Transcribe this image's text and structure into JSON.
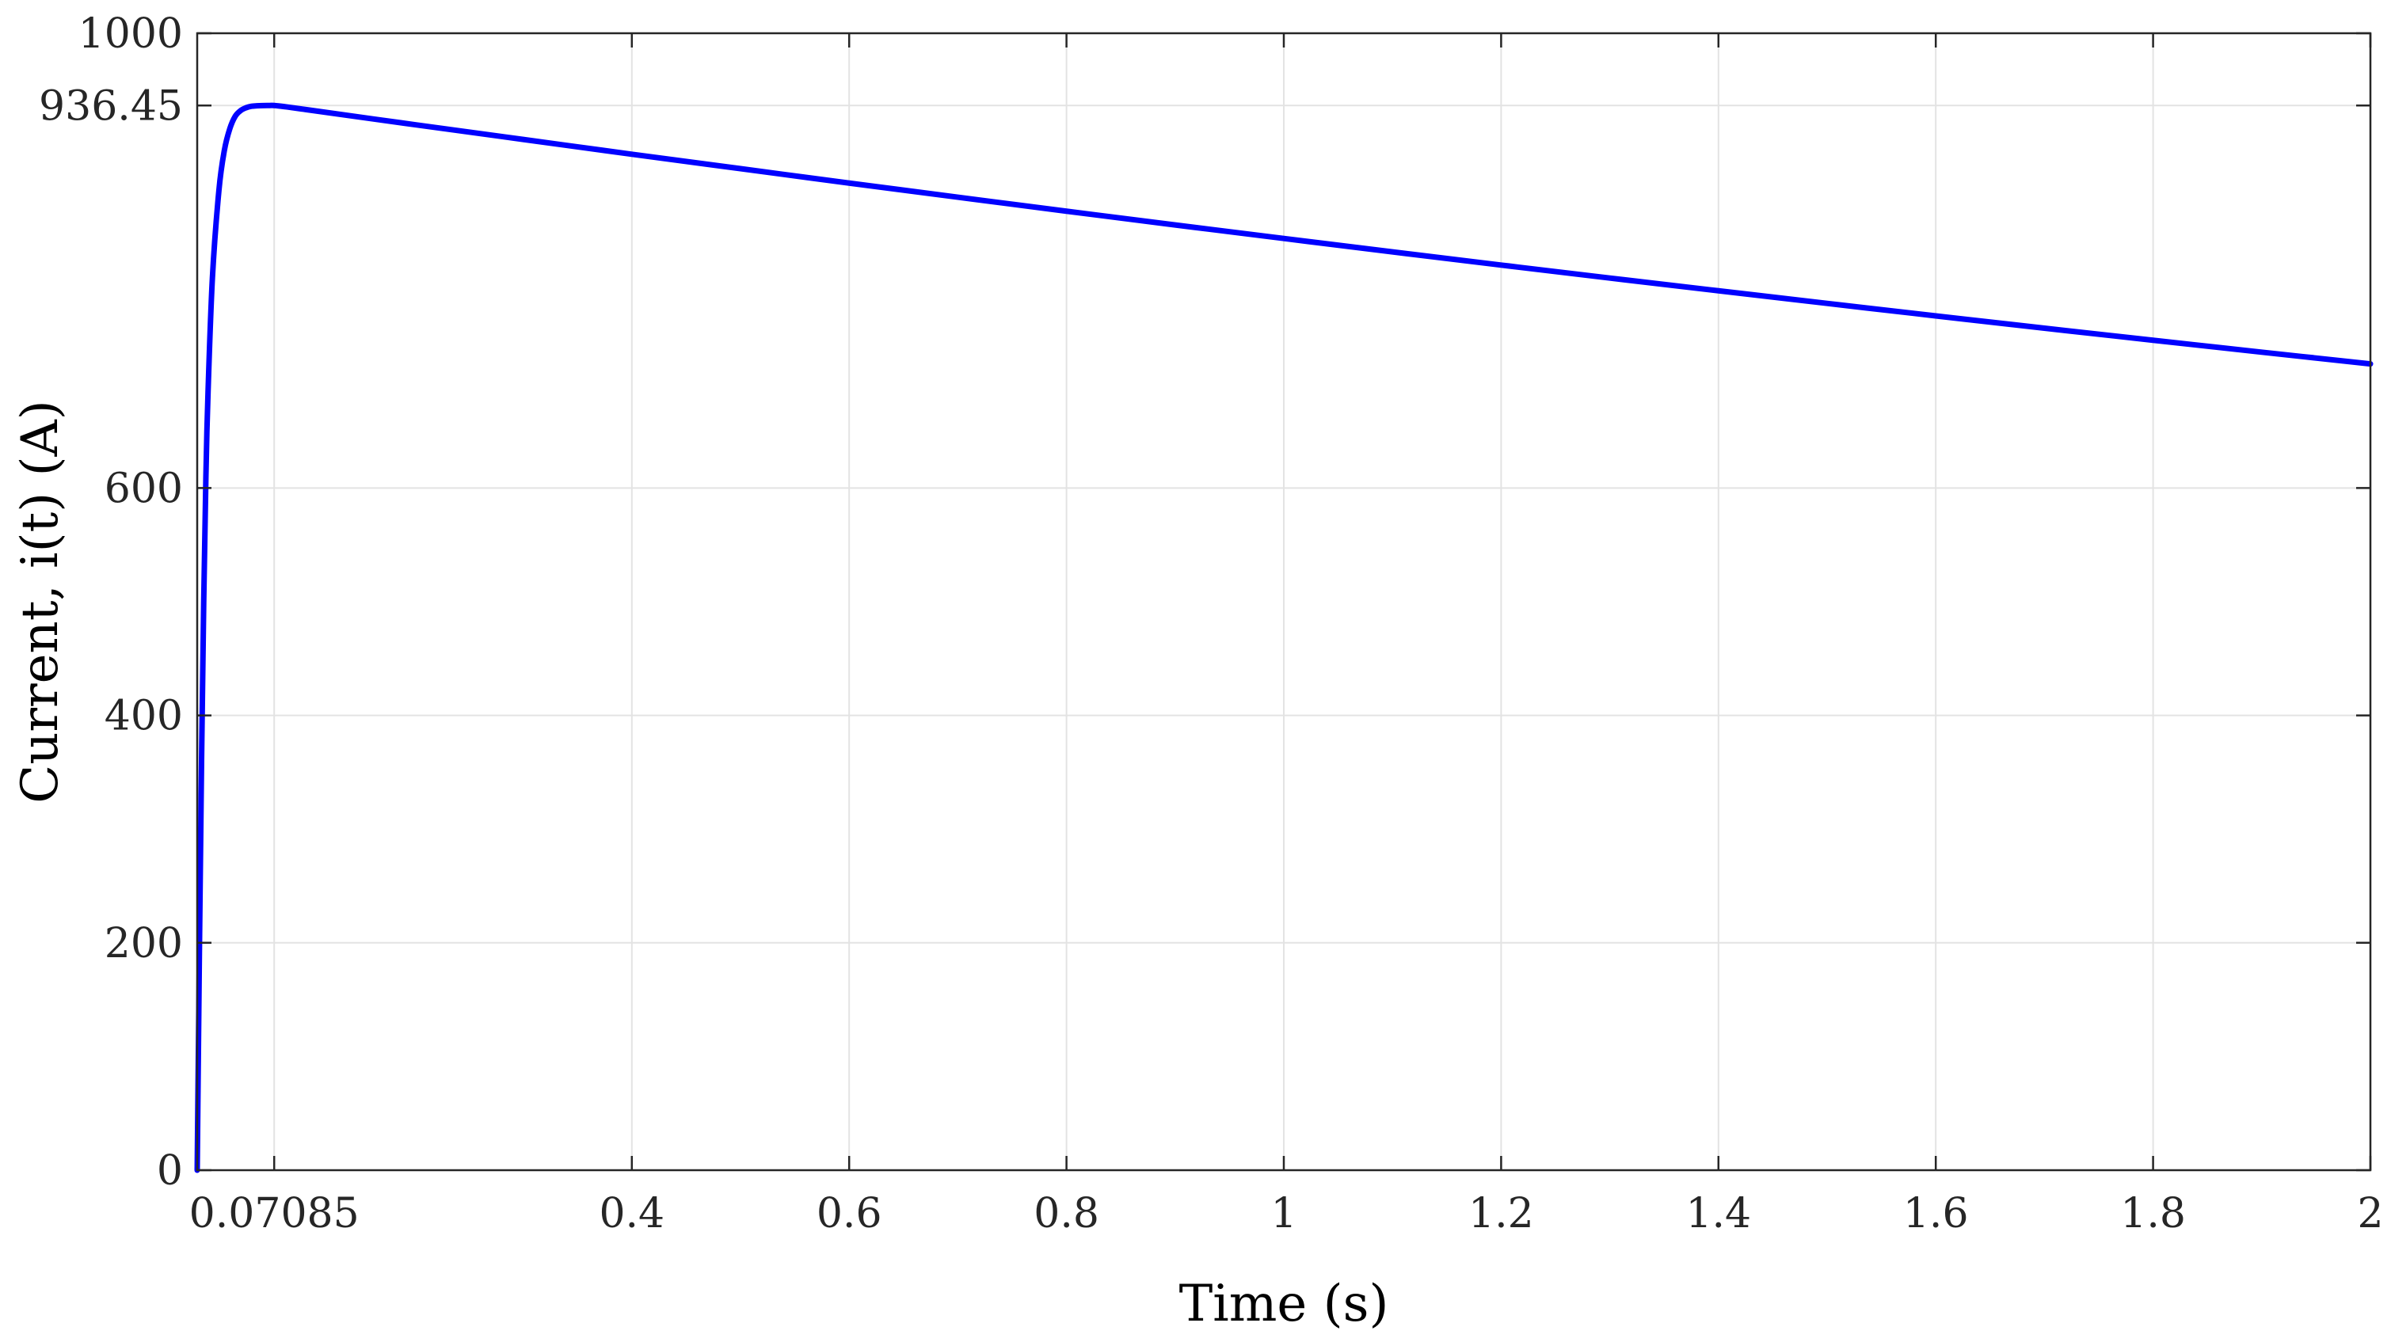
{
  "chart_data": {
    "type": "line",
    "title": "",
    "xlabel": "Time (s)",
    "ylabel": "Current, i(t) (A)",
    "xlim": [
      0,
      2
    ],
    "ylim": [
      0,
      1000
    ],
    "grid": true,
    "x_ticks": [
      {
        "value": 0.07085,
        "label": "0.07085"
      },
      {
        "value": 0.4,
        "label": "0.4"
      },
      {
        "value": 0.6,
        "label": "0.6"
      },
      {
        "value": 0.8,
        "label": "0.8"
      },
      {
        "value": 1,
        "label": "1"
      },
      {
        "value": 1.2,
        "label": "1.2"
      },
      {
        "value": 1.4,
        "label": "1.4"
      },
      {
        "value": 1.6,
        "label": "1.6"
      },
      {
        "value": 1.8,
        "label": "1.8"
      },
      {
        "value": 2,
        "label": "2"
      }
    ],
    "y_ticks": [
      {
        "value": 0,
        "label": "0"
      },
      {
        "value": 200,
        "label": "200"
      },
      {
        "value": 400,
        "label": "400"
      },
      {
        "value": 600,
        "label": "600"
      },
      {
        "value": 936.45,
        "label": "936.45"
      },
      {
        "value": 1000,
        "label": "1000"
      }
    ],
    "series": [
      {
        "color": "#0000ff",
        "x": [
          0,
          0.002,
          0.004,
          0.006,
          0.008,
          0.01,
          0.014,
          0.02,
          0.025,
          0.03,
          0.035,
          0.04,
          0.045,
          0.05,
          0.055,
          0.06,
          0.065,
          0.07085,
          0.08,
          0.1,
          0.2,
          0.3,
          0.4,
          0.5,
          0.6,
          0.7,
          0.8,
          0.9,
          1,
          1.1,
          1.2,
          1.3,
          1.4,
          1.5,
          1.6,
          1.7,
          1.8,
          1.9,
          2
        ],
        "y": [
          0,
          190,
          360,
          500,
          610,
          685,
          785,
          862,
          897,
          916,
          927,
          932,
          934.5,
          935.8,
          936.2,
          936.4,
          936.45,
          936.45,
          935.5,
          932.9,
          919.6,
          906.6,
          893.6,
          880.9,
          868.2,
          855.8,
          843.5,
          831.4,
          819.5,
          807.7,
          796.1,
          784.7,
          773.5,
          762.4,
          751.4,
          740.6,
          730.0,
          719.5,
          709.2
        ]
      }
    ]
  }
}
